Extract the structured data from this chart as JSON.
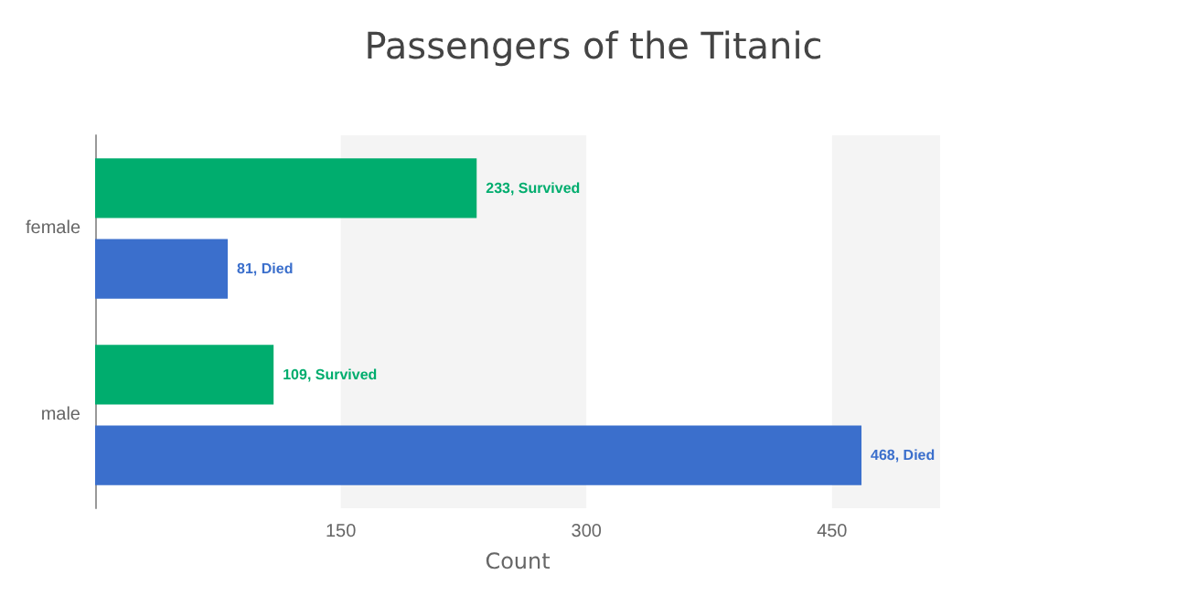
{
  "chart_data": {
    "type": "bar",
    "title": "Passengers of the Titanic",
    "xlabel": "Count",
    "orientation": "horizontal",
    "categories": [
      "female",
      "male"
    ],
    "series": [
      {
        "name": "Survived",
        "color": "#00ad6e",
        "values": [
          233,
          109
        ],
        "value_labels": [
          "233,",
          "109,"
        ]
      },
      {
        "name": "Died",
        "color": "#3b6fcc",
        "values": [
          81,
          468
        ],
        "value_labels": [
          "81,",
          "468,"
        ]
      }
    ],
    "xlim": [
      0,
      516
    ],
    "xticks": [
      150,
      300,
      450
    ],
    "bands": [
      {
        "axis": "x",
        "from": 150,
        "to": 300,
        "color": "#f4f4f4"
      },
      {
        "axis": "x",
        "from": 450,
        "to": 516,
        "color": "#f4f4f4"
      }
    ],
    "grid": false,
    "legend": false
  }
}
